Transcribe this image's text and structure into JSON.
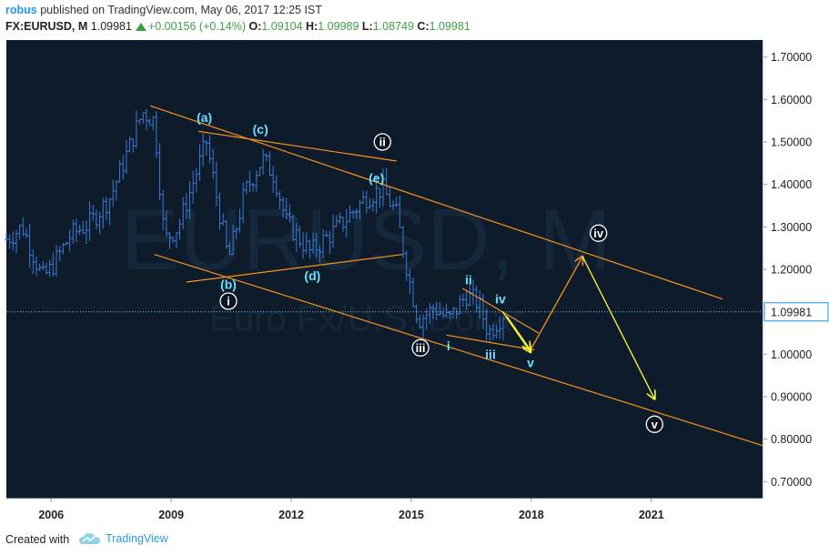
{
  "header": {
    "user": "robus",
    "published_text": "published on TradingView.com, May 06, 2017 12:25 IST",
    "symbol": "FX:EURUSD, M",
    "last": "1.09981",
    "change": "+0.00156 (+0.14%)",
    "o_label": "O:",
    "o_value": "1.09104",
    "h_label": "H:",
    "h_value": "1.09989",
    "l_label": "L:",
    "l_value": "1.08749",
    "c_label": "C:",
    "c_value": "1.09981"
  },
  "footer": {
    "created_with": "Created with",
    "brand": "TradingView"
  },
  "colors": {
    "background": "#0d1b2a",
    "candles": "#3a7bd5",
    "trendline": "#f7931e",
    "projection": "#ffff33",
    "wave_label": "#66e0ff",
    "axis_text": "#222222",
    "price_line": "#7fc8ff"
  },
  "watermark": {
    "line1": "EURUSD, M",
    "line2": "Euro Fx/U.S. Dollar"
  },
  "chart_data": {
    "type": "ohlc",
    "interval": "monthly",
    "y_ticks": [
      "1.70000",
      "1.60000",
      "1.50000",
      "1.40000",
      "1.30000",
      "1.20000",
      "1.10000",
      "1.00000",
      "0.90000",
      "0.80000",
      "0.70000"
    ],
    "x_ticks": [
      "2006",
      "2009",
      "2012",
      "2015",
      "2018",
      "2021"
    ],
    "ylim": [
      0.66,
      1.74
    ],
    "xlim": [
      2004.9,
      2023.8
    ],
    "current_price": "1.09981",
    "price_points": [
      [
        2004.9,
        1.27
      ],
      [
        2005.3,
        1.3
      ],
      [
        2005.8,
        1.18
      ],
      [
        2006.0,
        1.2
      ],
      [
        2006.5,
        1.28
      ],
      [
        2007.0,
        1.31
      ],
      [
        2007.5,
        1.37
      ],
      [
        2007.9,
        1.47
      ],
      [
        2008.3,
        1.57
      ],
      [
        2008.6,
        1.55
      ],
      [
        2008.85,
        1.27
      ],
      [
        2009.2,
        1.3
      ],
      [
        2009.9,
        1.5
      ],
      [
        2010.45,
        1.22
      ],
      [
        2010.85,
        1.38
      ],
      [
        2011.3,
        1.46
      ],
      [
        2011.6,
        1.42
      ],
      [
        2011.9,
        1.31
      ],
      [
        2012.5,
        1.24
      ],
      [
        2013.2,
        1.3
      ],
      [
        2013.9,
        1.37
      ],
      [
        2014.3,
        1.39
      ],
      [
        2014.65,
        1.33
      ],
      [
        2015.0,
        1.16
      ],
      [
        2015.2,
        1.08
      ],
      [
        2015.6,
        1.11
      ],
      [
        2015.95,
        1.08
      ],
      [
        2016.4,
        1.14
      ],
      [
        2016.7,
        1.12
      ],
      [
        2016.95,
        1.05
      ],
      [
        2017.35,
        1.1
      ]
    ],
    "trendlines": [
      {
        "from": [
          2008.5,
          1.585
        ],
        "to": [
          2022.8,
          1.13
        ]
      },
      {
        "from": [
          2008.6,
          1.235
        ],
        "to": [
          2023.8,
          0.785
        ]
      },
      {
        "from": [
          2009.7,
          1.525
        ],
        "to": [
          2014.65,
          1.455
        ]
      },
      {
        "from": [
          2009.4,
          1.17
        ],
        "to": [
          2014.8,
          1.235
        ]
      },
      {
        "from": [
          2016.3,
          1.155
        ],
        "to": [
          2018.2,
          1.05
        ]
      },
      {
        "from": [
          2015.9,
          1.045
        ],
        "to": [
          2018.1,
          1.01
        ]
      }
    ],
    "projection": [
      [
        2017.4,
        1.09
      ],
      [
        2018.0,
        1.01
      ],
      [
        2019.3,
        1.23
      ],
      [
        2021.1,
        0.895
      ]
    ],
    "small_arrow": {
      "from": [
        2017.3,
        1.1
      ],
      "to": [
        2018.0,
        1.005
      ]
    },
    "wave_labels": [
      {
        "text": "(a)",
        "x": 2009.85,
        "y": 1.558,
        "circled": false
      },
      {
        "text": "(c)",
        "x": 2011.25,
        "y": 1.53,
        "circled": false
      },
      {
        "text": "ii",
        "x": 2014.3,
        "y": 1.5,
        "circled": true
      },
      {
        "text": "(e)",
        "x": 2014.15,
        "y": 1.415,
        "circled": false
      },
      {
        "text": "(d)",
        "x": 2012.55,
        "y": 1.185,
        "circled": false
      },
      {
        "text": "(b)",
        "x": 2010.45,
        "y": 1.165,
        "circled": false
      },
      {
        "text": "i",
        "x": 2010.45,
        "y": 1.125,
        "circled": true
      },
      {
        "text": "iii",
        "x": 2015.25,
        "y": 1.015,
        "circled": true
      },
      {
        "text": "ii",
        "x": 2016.45,
        "y": 1.175,
        "circled": false
      },
      {
        "text": "iv",
        "x": 2017.25,
        "y": 1.13,
        "circled": false
      },
      {
        "text": "i",
        "x": 2015.95,
        "y": 1.02,
        "circled": false
      },
      {
        "text": "iii",
        "x": 2017.0,
        "y": 1.0,
        "circled": false
      },
      {
        "text": "v",
        "x": 2018.0,
        "y": 0.98,
        "circled": false
      },
      {
        "text": "iv",
        "x": 2019.7,
        "y": 1.285,
        "circled": true
      },
      {
        "text": "v",
        "x": 2021.1,
        "y": 0.835,
        "circled": true
      }
    ]
  }
}
